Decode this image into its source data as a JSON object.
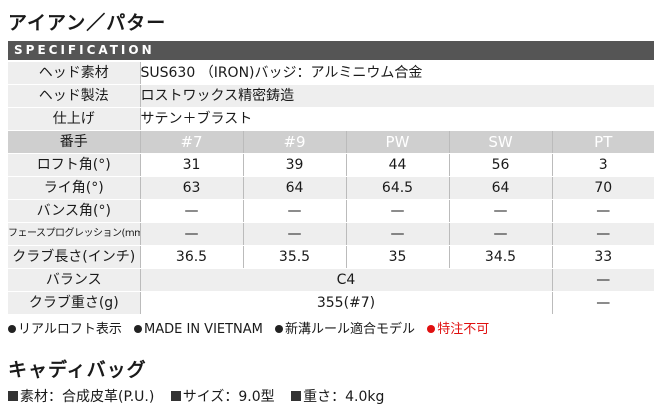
{
  "iron_title": "アイアン／パター",
  "spec_bar": "SPECIFICATION",
  "head_material": {
    "label": "ヘッド素材",
    "value": "SUS630 （IRON)バッジ：アルミニウム合金"
  },
  "head_method": {
    "label": "ヘッド製法",
    "value": "ロストワックス精密鋳造"
  },
  "finish": {
    "label": "仕上げ",
    "value": "サテン＋ブラスト"
  },
  "columns": {
    "label": "番手",
    "c1": "#7",
    "c2": "#9",
    "c3": "PW",
    "c4": "SW",
    "c5": "PT"
  },
  "loft": {
    "label": "ロフト角(°)",
    "c1": "31",
    "c2": "39",
    "c3": "44",
    "c4": "56",
    "c5": "3"
  },
  "lie": {
    "label": "ライ角(°)",
    "c1": "63",
    "c2": "64",
    "c3": "64.5",
    "c4": "64",
    "c5": "70"
  },
  "bounce": {
    "label": "バンス角(°)",
    "c1": "—",
    "c2": "—",
    "c3": "—",
    "c4": "—",
    "c5": "—"
  },
  "face_progression": {
    "label": "フェースプログレッション(mm)",
    "c1": "—",
    "c2": "—",
    "c3": "—",
    "c4": "—",
    "c5": "—"
  },
  "club_length": {
    "label": "クラブ長さ(インチ)",
    "c1": "36.5",
    "c2": "35.5",
    "c3": "35",
    "c4": "34.5",
    "c5": "33"
  },
  "balance": {
    "label": "バランス",
    "value": "C4",
    "pt": "—"
  },
  "club_weight": {
    "label": "クラブ重さ(g)",
    "value": "355(#7)",
    "pt": "—"
  },
  "notes": {
    "n1": "リアルロフト表示",
    "n2": "MADE IN VIETNAM",
    "n3": "新溝ルール適合モデル",
    "n4": "特注不可"
  },
  "bag_title": "キャディバッグ",
  "bag": {
    "material": "素材：合成皮革(P.U.)",
    "size": "サイズ：9.0型",
    "weight": "重さ：4.0kg"
  },
  "colors": {
    "bar": "#555555",
    "shade": "#eeeeee",
    "header": "#cfcfcf",
    "note_red": "#e01010"
  }
}
